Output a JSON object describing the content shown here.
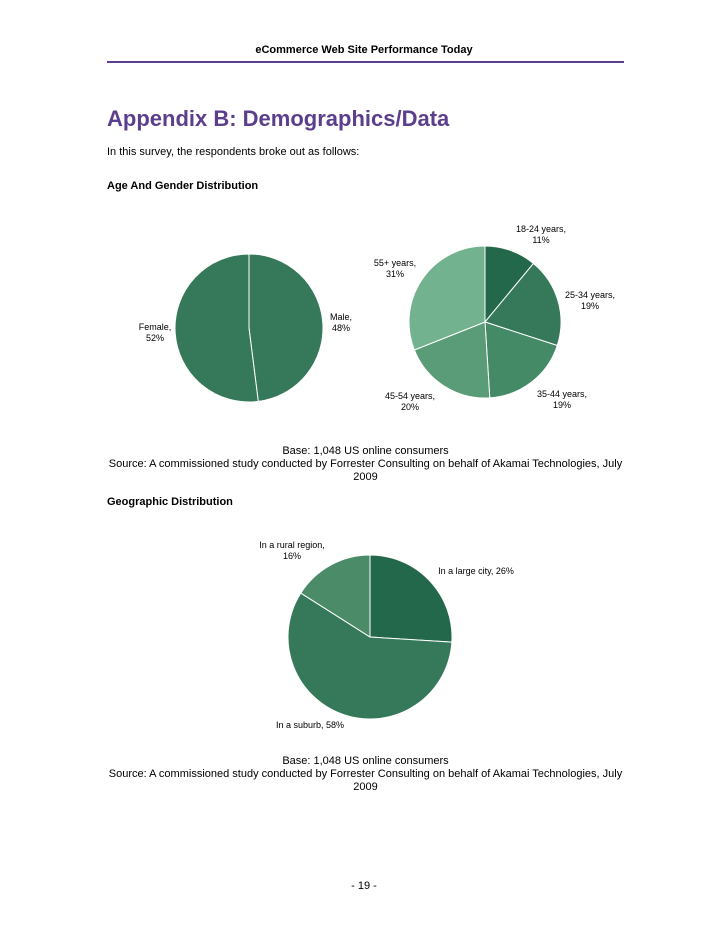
{
  "header": {
    "running_title": "eCommerce Web Site Performance Today"
  },
  "title": "Appendix B: Demographics/Data",
  "intro": "In this survey, the respondents broke out as follows:",
  "section1": {
    "heading": "Age And Gender Distribution",
    "source_base": "Base: 1,048 US online consumers",
    "source_line1": "Source: A commissioned study conducted by Forrester Consulting on behalf of Akamai Technologies, July",
    "source_line2": "2009"
  },
  "section2": {
    "heading": "Geographic Distribution",
    "source_base": "Base: 1,048 US online consumers",
    "source_line1": "Source: A commissioned study conducted by Forrester Consulting on behalf of Akamai Technologies, July",
    "source_line2": "2009"
  },
  "page_number": "- 19 -",
  "chart_data": [
    {
      "type": "pie",
      "title": "Gender",
      "slices": [
        {
          "name": "Male",
          "value": 48,
          "label1": "Male,",
          "label2": "48%",
          "color": "#36785a"
        },
        {
          "name": "Female",
          "value": 52,
          "label1": "Female,",
          "label2": "52%",
          "color": "#36785a"
        }
      ]
    },
    {
      "type": "pie",
      "title": "Age",
      "slices": [
        {
          "name": "18-24 years",
          "value": 11,
          "label1": "18-24 years,",
          "label2": "11%",
          "color": "#23684a"
        },
        {
          "name": "25-34 years",
          "value": 19,
          "label1": "25-34 years,",
          "label2": "19%",
          "color": "#36785a"
        },
        {
          "name": "35-44 years",
          "value": 19,
          "label1": "35-44 years,",
          "label2": "19%",
          "color": "#448a66"
        },
        {
          "name": "45-54 years",
          "value": 20,
          "label1": "45-54 years,",
          "label2": "20%",
          "color": "#5a9c78"
        },
        {
          "name": "55+ years",
          "value": 31,
          "label1": "55+ years,",
          "label2": "31%",
          "color": "#72b28e"
        }
      ]
    },
    {
      "type": "pie",
      "title": "Geography",
      "slices": [
        {
          "name": "In a large city",
          "value": 26,
          "label1": "In a large city, 26%",
          "label2": "",
          "color": "#23684a"
        },
        {
          "name": "In a suburb",
          "value": 58,
          "label1": "In a suburb, 58%",
          "label2": "",
          "color": "#36785a"
        },
        {
          "name": "In a rural region",
          "value": 16,
          "label1": "In a rural region,",
          "label2": "16%",
          "color": "#4b8b68"
        }
      ]
    }
  ]
}
